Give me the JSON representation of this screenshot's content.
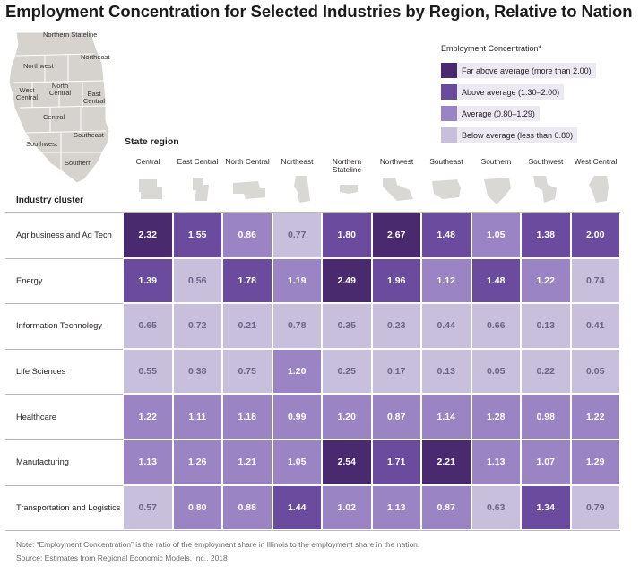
{
  "title": "Employment Concentration for Selected Industries by Region, Relative to Nation",
  "map": {
    "labels": [
      "Northern Stateline",
      "Northeast",
      "Northwest",
      "North Central",
      "West Central",
      "East Central",
      "Central",
      "Southeast",
      "Southwest",
      "Southern"
    ]
  },
  "legend": {
    "title": "Employment Concentration*",
    "items": [
      {
        "label": "Far above average (more than 2.00)",
        "color": "#4a2a6e"
      },
      {
        "label": "Above average (1.30–2.00)",
        "color": "#6a4b9e"
      },
      {
        "label": "Average (0.80–1.29)",
        "color": "#9b84c4"
      },
      {
        "label": "Below average (less than 0.80)",
        "color": "#c8bfdc"
      }
    ]
  },
  "state_region_label": "State region",
  "industry_cluster_label": "Industry cluster",
  "colors": {
    "far_above": "#4a2a6e",
    "above": "#6a4b9e",
    "average": "#9b84c4",
    "below": "#c8bfdc",
    "below_text": "#6b6585",
    "region_shape": "#dad8d5"
  },
  "chart_data": {
    "type": "heatmap",
    "title": "Employment Concentration for Selected Industries by Region, Relative to Nation",
    "x_title": "State region",
    "y_title": "Industry cluster",
    "columns": [
      "Central",
      "East Central",
      "North Central",
      "Northeast",
      "Northern Stateline",
      "Northwest",
      "Southeast",
      "Southern",
      "Southwest",
      "West Central"
    ],
    "rows": [
      "Agribusiness and Ag Tech",
      "Energy",
      "Information Technology",
      "Life Sciences",
      "Healthcare",
      "Manufacturing",
      "Transportation and Logistics"
    ],
    "values": [
      [
        2.32,
        1.55,
        0.86,
        0.77,
        1.8,
        2.67,
        1.48,
        1.05,
        1.38,
        2.0
      ],
      [
        1.39,
        0.56,
        1.78,
        1.19,
        2.49,
        1.96,
        1.12,
        1.48,
        1.22,
        0.74
      ],
      [
        0.65,
        0.72,
        0.21,
        0.78,
        0.35,
        0.23,
        0.44,
        0.66,
        0.13,
        0.41
      ],
      [
        0.55,
        0.38,
        0.75,
        1.2,
        0.25,
        0.17,
        0.13,
        0.05,
        0.22,
        0.05
      ],
      [
        1.22,
        1.11,
        1.18,
        0.99,
        1.2,
        0.87,
        1.14,
        1.28,
        0.98,
        1.22
      ],
      [
        1.13,
        1.26,
        1.21,
        1.05,
        2.54,
        1.71,
        2.21,
        1.13,
        1.07,
        1.29
      ],
      [
        0.57,
        0.8,
        0.88,
        1.44,
        1.02,
        1.13,
        0.87,
        0.63,
        1.34,
        0.79
      ]
    ],
    "categories_legend": [
      "Far above average (more than 2.00)",
      "Above average (1.30–2.00)",
      "Average (0.80–1.29)",
      "Below average (less than 0.80)"
    ]
  },
  "notes": {
    "note": "Note: “Employment Concentration” is the ratio of the employment share in Illinois to the employment share in the nation.",
    "source": "Source: Estimates from Regional Economic Models, Inc., 2018"
  }
}
